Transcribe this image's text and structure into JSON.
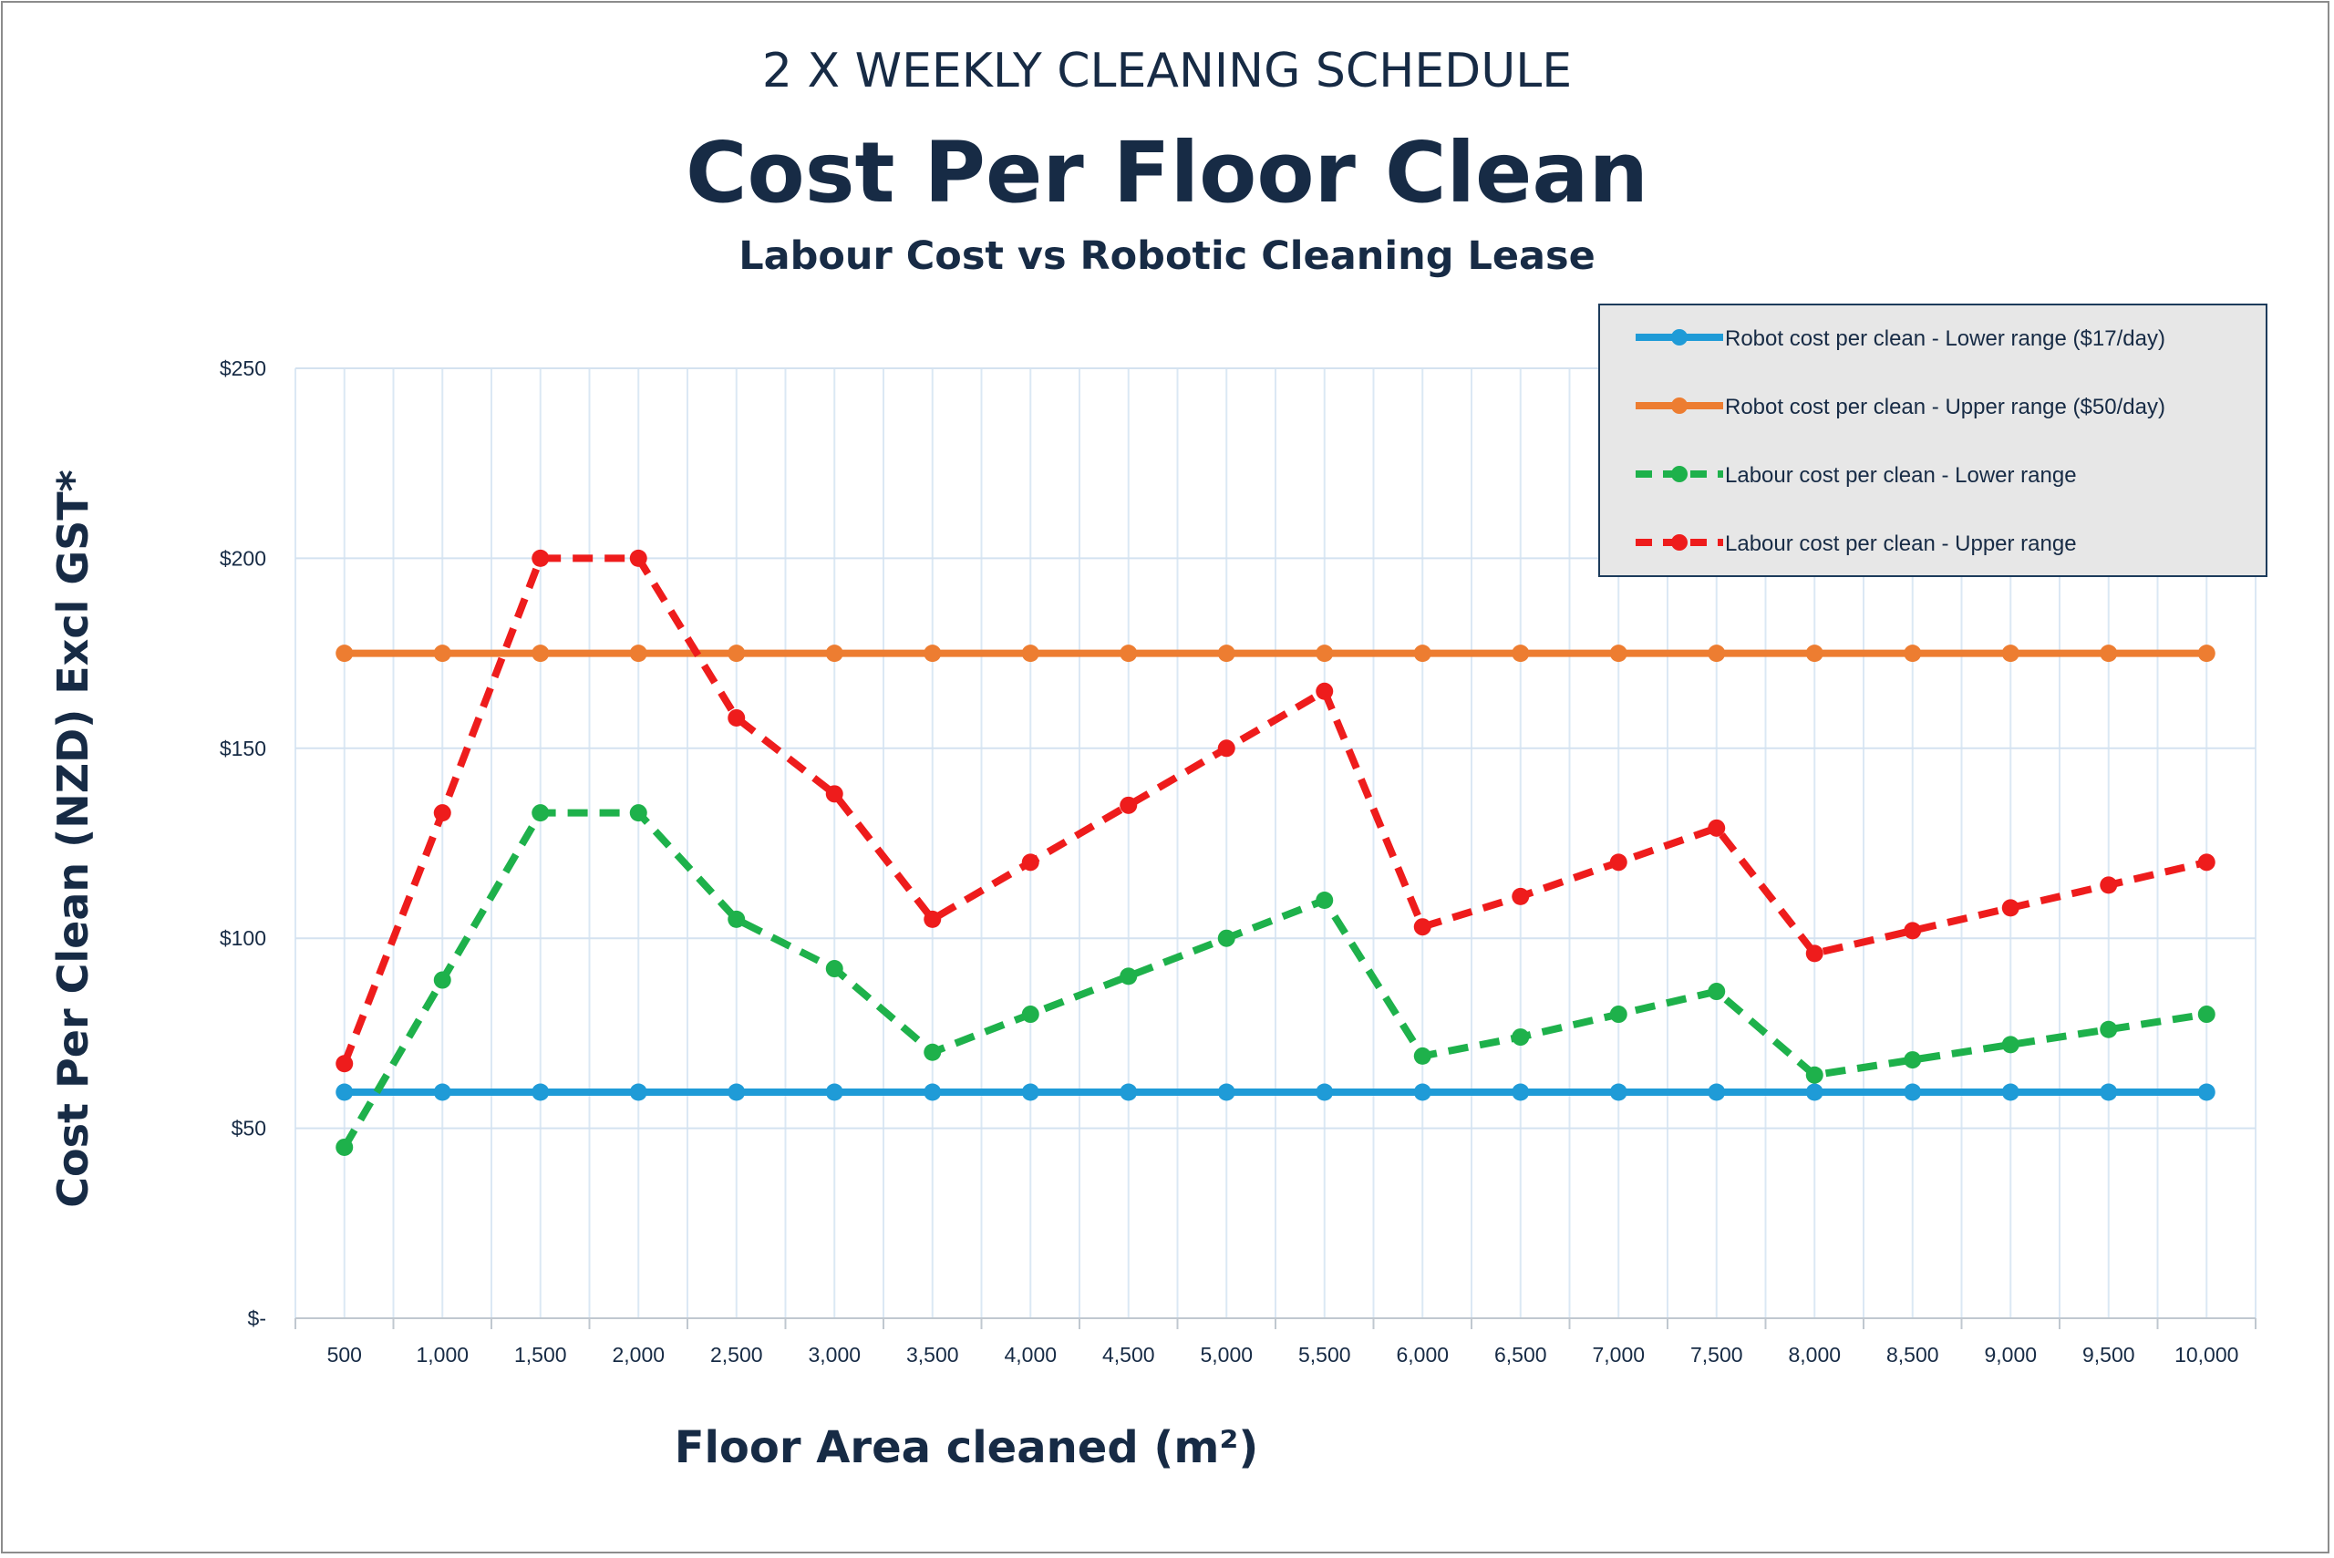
{
  "chart_data": {
    "type": "line",
    "supertitle": "2 X WEEKLY CLEANING SCHEDULE",
    "title": "Cost Per Floor Clean",
    "subtitle": "Labour Cost vs Robotic Cleaning Lease",
    "xlabel": "Floor Area cleaned (m²)",
    "ylabel": "Cost Per Clean (NZD) Excl GST*",
    "x": [
      500,
      1000,
      1500,
      2000,
      2500,
      3000,
      3500,
      4000,
      4500,
      5000,
      5500,
      6000,
      6500,
      7000,
      7500,
      8000,
      8500,
      9000,
      9500,
      10000
    ],
    "x_tick_labels": [
      "500",
      "1,000",
      "1,500",
      "2,000",
      "2,500",
      "3,000",
      "3,500",
      "4,000",
      "4,500",
      "5,000",
      "5,500",
      "6,000",
      "6,500",
      "7,000",
      "7,500",
      "8,000",
      "8,500",
      "9,000",
      "9,500",
      "10,000"
    ],
    "y_ticks": [
      0,
      50,
      100,
      150,
      200,
      250
    ],
    "y_tick_labels": [
      "$-",
      "$50",
      "$100",
      "$150",
      "$200",
      "$250"
    ],
    "ylim": [
      0,
      250
    ],
    "grid": true,
    "legend_position": "top-right",
    "series": [
      {
        "name": "Robot cost per clean - Lower  range ($17/day)",
        "color": "#1f9bd7",
        "style": "solid",
        "values": [
          59.5,
          59.5,
          59.5,
          59.5,
          59.5,
          59.5,
          59.5,
          59.5,
          59.5,
          59.5,
          59.5,
          59.5,
          59.5,
          59.5,
          59.5,
          59.5,
          59.5,
          59.5,
          59.5,
          59.5
        ]
      },
      {
        "name": "Robot cost per clean - Upper  range ($50/day)",
        "color": "#ed7d31",
        "style": "solid",
        "values": [
          175,
          175,
          175,
          175,
          175,
          175,
          175,
          175,
          175,
          175,
          175,
          175,
          175,
          175,
          175,
          175,
          175,
          175,
          175,
          175
        ]
      },
      {
        "name": "Labour cost per clean - Lower range",
        "color": "#1eb14b",
        "style": "dashed",
        "values": [
          45,
          89,
          133,
          133,
          105,
          92,
          70,
          80,
          90,
          100,
          110,
          69,
          74,
          80,
          86,
          64,
          68,
          72,
          76,
          80
        ]
      },
      {
        "name": "Labour cost per clean - Upper range",
        "color": "#ee1c1c",
        "style": "dashed",
        "values": [
          67,
          133,
          200,
          200,
          158,
          138,
          105,
          120,
          135,
          150,
          165,
          103,
          111,
          120,
          129,
          96,
          102,
          108,
          114,
          120
        ]
      }
    ]
  }
}
